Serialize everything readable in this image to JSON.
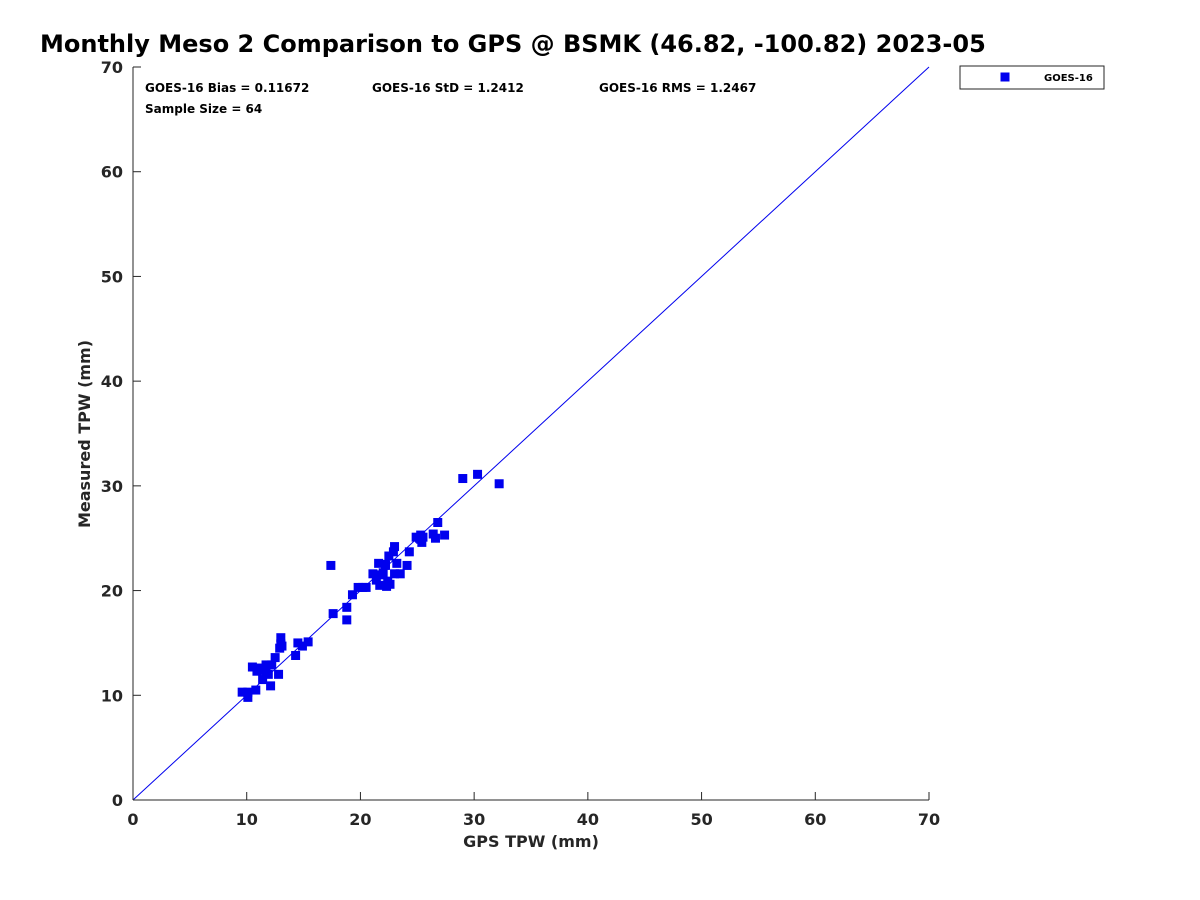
{
  "title": "Monthly Meso 2 Comparison to GPS @ BSMK (46.82, -100.82) 2023-05",
  "stats": {
    "bias": "GOES-16 Bias = 0.11672",
    "std": "GOES-16 StD = 1.2412",
    "rms": "GOES-16 RMS = 1.2467",
    "sample": "Sample Size = 64"
  },
  "legend": {
    "label": "GOES-16",
    "placement": "top-right, outside plot"
  },
  "colors": {
    "points": "#0000ee",
    "line": "#0000ee",
    "axes": "#262626"
  },
  "chart_data": {
    "type": "scatter",
    "title": "Monthly Meso 2 Comparison to GPS @ BSMK (46.82, -100.82) 2023-05",
    "xlabel": "GPS TPW (mm)",
    "ylabel": "Measured TPW (mm)",
    "xlim": [
      0,
      70
    ],
    "ylim": [
      0,
      70
    ],
    "xticks": [
      0,
      10,
      20,
      30,
      40,
      50,
      60,
      70
    ],
    "yticks": [
      0,
      10,
      20,
      30,
      40,
      50,
      60,
      70
    ],
    "grid": false,
    "reference_line": {
      "from": [
        0,
        0
      ],
      "to": [
        70,
        70
      ]
    },
    "series": [
      {
        "name": "GOES-16",
        "marker": "square",
        "points": [
          [
            9.6,
            10.3
          ],
          [
            10.1,
            9.8
          ],
          [
            10.1,
            10.3
          ],
          [
            10.5,
            12.7
          ],
          [
            10.8,
            10.5
          ],
          [
            10.9,
            12.3
          ],
          [
            11.1,
            12.6
          ],
          [
            11.4,
            11.5
          ],
          [
            11.5,
            12.4
          ],
          [
            11.7,
            12.2
          ],
          [
            11.7,
            12.9
          ],
          [
            11.9,
            12.0
          ],
          [
            12.1,
            10.9
          ],
          [
            12.2,
            12.9
          ],
          [
            12.5,
            13.6
          ],
          [
            12.8,
            12.0
          ],
          [
            12.9,
            14.5
          ],
          [
            13.0,
            15.5
          ],
          [
            13.0,
            14.9
          ],
          [
            13.1,
            14.7
          ],
          [
            14.3,
            13.8
          ],
          [
            14.5,
            15.0
          ],
          [
            14.9,
            14.7
          ],
          [
            15.4,
            15.1
          ],
          [
            17.4,
            22.4
          ],
          [
            17.6,
            17.8
          ],
          [
            18.8,
            18.4
          ],
          [
            18.8,
            17.2
          ],
          [
            19.3,
            19.6
          ],
          [
            19.8,
            20.3
          ],
          [
            20.2,
            20.3
          ],
          [
            20.5,
            20.3
          ],
          [
            21.1,
            21.6
          ],
          [
            21.4,
            21.0
          ],
          [
            21.6,
            22.6
          ],
          [
            21.7,
            20.5
          ],
          [
            21.8,
            21.5
          ],
          [
            22.0,
            21.7
          ],
          [
            22.2,
            22.5
          ],
          [
            22.2,
            22.4
          ],
          [
            22.3,
            20.4
          ],
          [
            22.4,
            20.9
          ],
          [
            22.5,
            23.3
          ],
          [
            22.9,
            23.7
          ],
          [
            23.0,
            24.2
          ],
          [
            23.0,
            21.6
          ],
          [
            23.2,
            22.6
          ],
          [
            23.5,
            21.6
          ],
          [
            24.1,
            22.4
          ],
          [
            24.3,
            23.7
          ],
          [
            24.9,
            25.1
          ],
          [
            25.3,
            24.9
          ],
          [
            25.3,
            25.3
          ],
          [
            25.4,
            24.6
          ],
          [
            25.5,
            25.1
          ],
          [
            26.4,
            25.4
          ],
          [
            26.6,
            25.0
          ],
          [
            26.8,
            26.5
          ],
          [
            27.4,
            25.3
          ],
          [
            29.0,
            30.7
          ],
          [
            30.3,
            31.1
          ],
          [
            32.2,
            30.2
          ],
          [
            25.2,
            25.0
          ],
          [
            22.6,
            20.6
          ]
        ]
      }
    ]
  }
}
